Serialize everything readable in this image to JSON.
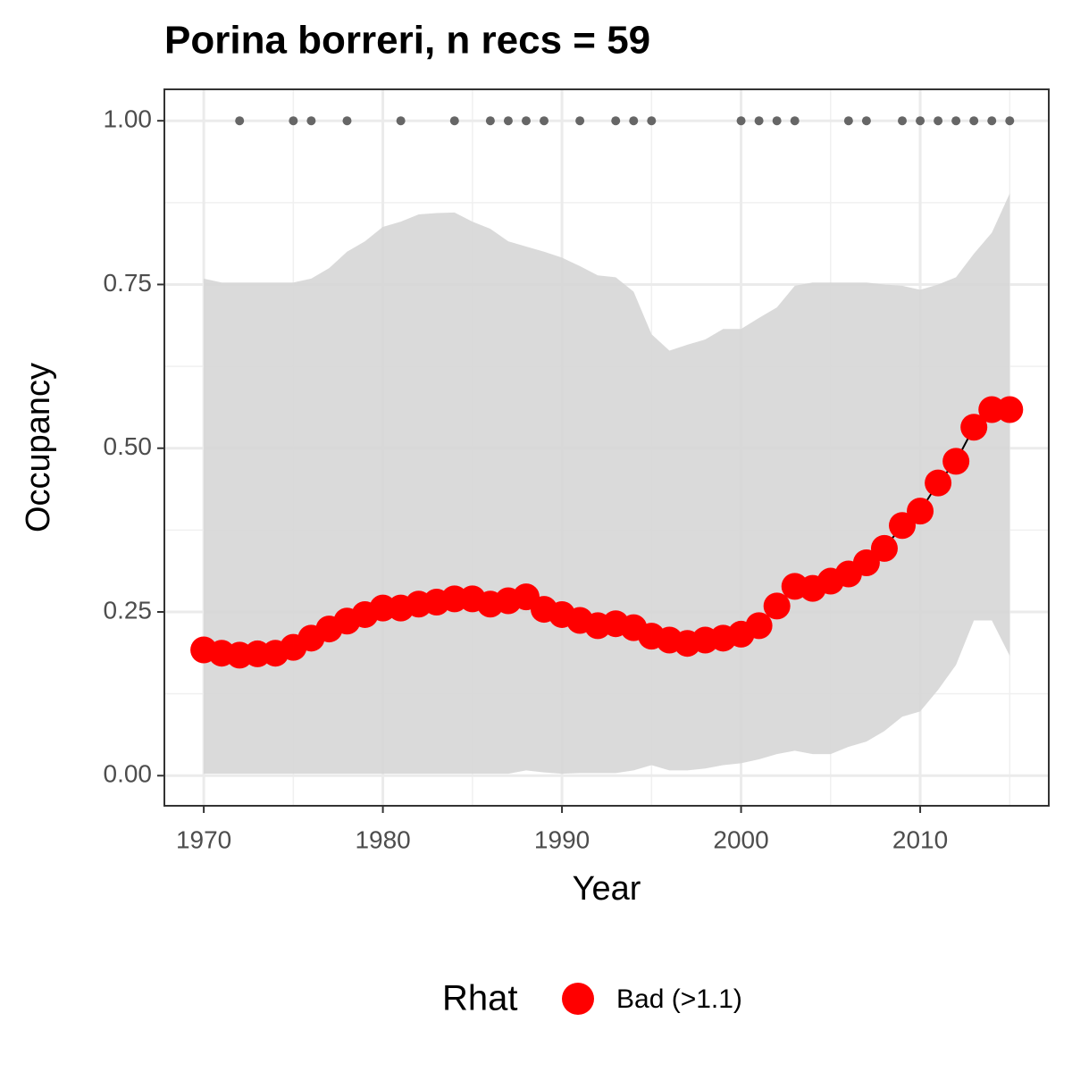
{
  "chart_data": {
    "type": "line",
    "title": "Porina borreri, n recs = 59",
    "x_label": "Year",
    "y_label": "Occupancy",
    "legend_title": "Rhat",
    "x": [
      1970,
      1971,
      1972,
      1973,
      1974,
      1975,
      1976,
      1977,
      1978,
      1979,
      1980,
      1981,
      1982,
      1983,
      1984,
      1985,
      1986,
      1987,
      1988,
      1989,
      1990,
      1991,
      1992,
      1993,
      1994,
      1995,
      1996,
      1997,
      1998,
      1999,
      2000,
      2001,
      2002,
      2003,
      2004,
      2005,
      2006,
      2007,
      2008,
      2009,
      2010,
      2011,
      2012,
      2013,
      2014,
      2015
    ],
    "series": [
      {
        "name": "Bad (>1.1)",
        "color": "#ff0000",
        "line_color": "#000000",
        "values": [
          0.192,
          0.187,
          0.184,
          0.186,
          0.187,
          0.196,
          0.21,
          0.224,
          0.236,
          0.246,
          0.256,
          0.256,
          0.262,
          0.265,
          0.27,
          0.27,
          0.262,
          0.267,
          0.273,
          0.254,
          0.246,
          0.237,
          0.229,
          0.232,
          0.226,
          0.213,
          0.207,
          0.202,
          0.207,
          0.21,
          0.216,
          0.229,
          0.259,
          0.289,
          0.286,
          0.297,
          0.308,
          0.325,
          0.347,
          0.382,
          0.404,
          0.447,
          0.48,
          0.532,
          0.559,
          0.559
        ]
      }
    ],
    "ribbon": {
      "color": "#d6d6d6",
      "lower": [
        0.003,
        0.003,
        0.003,
        0.003,
        0.003,
        0.003,
        0.003,
        0.003,
        0.003,
        0.003,
        0.003,
        0.003,
        0.003,
        0.003,
        0.003,
        0.003,
        0.003,
        0.003,
        0.008,
        0.005,
        0.003,
        0.004,
        0.004,
        0.004,
        0.008,
        0.016,
        0.008,
        0.008,
        0.011,
        0.016,
        0.019,
        0.025,
        0.033,
        0.038,
        0.033,
        0.033,
        0.044,
        0.052,
        0.068,
        0.09,
        0.098,
        0.131,
        0.169,
        0.237,
        0.237,
        0.183
      ],
      "upper": [
        0.759,
        0.753,
        0.753,
        0.753,
        0.753,
        0.753,
        0.759,
        0.775,
        0.8,
        0.816,
        0.838,
        0.846,
        0.857,
        0.859,
        0.86,
        0.846,
        0.835,
        0.816,
        0.808,
        0.8,
        0.791,
        0.778,
        0.764,
        0.761,
        0.739,
        0.674,
        0.649,
        0.658,
        0.666,
        0.682,
        0.682,
        0.699,
        0.715,
        0.748,
        0.753,
        0.753,
        0.753,
        0.753,
        0.75,
        0.748,
        0.742,
        0.75,
        0.761,
        0.797,
        0.829,
        0.889
      ]
    },
    "records": {
      "color": "#666666",
      "x": [
        1972,
        1975,
        1976,
        1978,
        1981,
        1984,
        1986,
        1987,
        1988,
        1989,
        1991,
        1993,
        1994,
        1995,
        2000,
        2001,
        2002,
        2003,
        2006,
        2007,
        2009,
        2010,
        2011,
        2012,
        2013,
        2014,
        2015
      ],
      "values": [
        1,
        1,
        1,
        1,
        1,
        1,
        1,
        1,
        1,
        1,
        1,
        1,
        1,
        1,
        1,
        1,
        1,
        1,
        1,
        1,
        1,
        1,
        1,
        1,
        1,
        1,
        1
      ]
    },
    "xlim": [
      1967.8,
      2017.18
    ],
    "ylim": [
      -0.046,
      1.048
    ],
    "xticks": [
      1970,
      1980,
      1990,
      2000,
      2010
    ],
    "yticks": [
      {
        "value": 0,
        "label": "0.00"
      },
      {
        "value": 0.25,
        "label": "0.25"
      },
      {
        "value": 0.5,
        "label": "0.50"
      },
      {
        "value": 0.75,
        "label": "0.75"
      },
      {
        "value": 1,
        "label": "1.00"
      }
    ],
    "minor_xticks": [
      1975,
      1985,
      1995,
      2005,
      2015
    ],
    "minor_yticks": [
      0.125,
      0.375,
      0.625,
      0.875
    ],
    "grid": true
  }
}
